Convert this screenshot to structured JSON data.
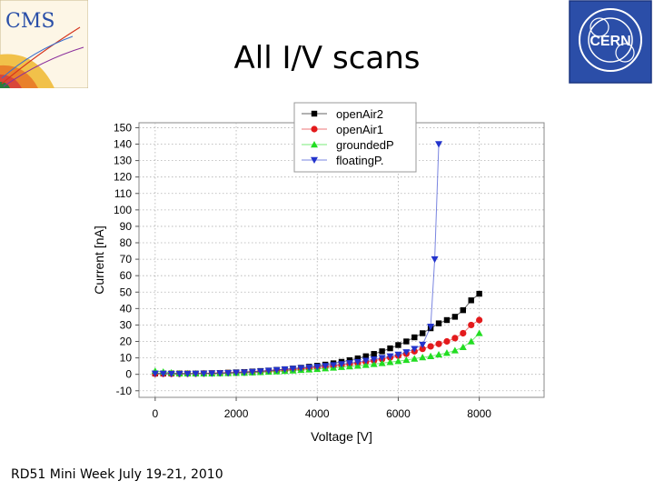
{
  "slide": {
    "title": "All I/V scans",
    "footer": "RD51 Mini Week July 19-21, 2010",
    "logo_left": "CMS",
    "logo_right": "CERN"
  },
  "chart_data": {
    "type": "scatter",
    "title": "",
    "xlabel": "Voltage [V]",
    "ylabel": "Current [nA]",
    "xlim": [
      -400,
      9600
    ],
    "ylim": [
      -14,
      153
    ],
    "xticks": [
      0,
      2000,
      4000,
      6000,
      8000
    ],
    "yticks": [
      -10,
      0,
      10,
      20,
      30,
      40,
      50,
      60,
      70,
      80,
      90,
      100,
      110,
      120,
      130,
      140,
      150
    ],
    "grid": true,
    "legend_position": "top-center",
    "series": [
      {
        "name": "openAir2",
        "color": "#000000",
        "marker": "square",
        "x": [
          0,
          200,
          400,
          600,
          800,
          1000,
          1200,
          1400,
          1600,
          1800,
          2000,
          2200,
          2400,
          2600,
          2800,
          3000,
          3200,
          3400,
          3600,
          3800,
          4000,
          4200,
          4400,
          4600,
          4800,
          5000,
          5200,
          5400,
          5600,
          5800,
          6000,
          6200,
          6400,
          6600,
          6800,
          7000,
          7200,
          7400,
          7600,
          7800,
          8000
        ],
        "y": [
          0.5,
          0.5,
          0.5,
          0.5,
          0.5,
          0.5,
          0.6,
          0.7,
          0.8,
          1.0,
          1.2,
          1.4,
          1.7,
          2.0,
          2.3,
          2.7,
          3.1,
          3.5,
          4.0,
          4.6,
          5.2,
          5.9,
          6.7,
          7.6,
          8.6,
          9.7,
          11.0,
          12.4,
          14.0,
          15.8,
          17.8,
          20.0,
          22.5,
          25.0,
          28.0,
          31.0,
          33.0,
          35.0,
          39.0,
          45.0,
          49.0
        ]
      },
      {
        "name": "openAir1",
        "color": "#e31a1c",
        "marker": "circle",
        "x": [
          0,
          200,
          400,
          600,
          800,
          1000,
          1200,
          1400,
          1600,
          1800,
          2000,
          2200,
          2400,
          2600,
          2800,
          3000,
          3200,
          3400,
          3600,
          3800,
          4000,
          4200,
          4400,
          4600,
          4800,
          5000,
          5200,
          5400,
          5600,
          5800,
          6000,
          6200,
          6400,
          6600,
          6800,
          7000,
          7200,
          7400,
          7600,
          7800,
          8000
        ],
        "y": [
          0.3,
          0.3,
          0.3,
          0.3,
          0.4,
          0.4,
          0.5,
          0.6,
          0.7,
          0.8,
          0.9,
          1.1,
          1.3,
          1.5,
          1.8,
          2.1,
          2.4,
          2.8,
          3.2,
          3.6,
          4.1,
          4.6,
          5.1,
          5.6,
          6.2,
          6.8,
          7.5,
          8.3,
          9.2,
          10.2,
          11.3,
          12.5,
          14.0,
          15.5,
          17.0,
          18.5,
          20.0,
          22.0,
          25.0,
          30.0,
          33.0
        ]
      },
      {
        "name": "groundedP",
        "color": "#22dd22",
        "marker": "triangle-up",
        "x": [
          0,
          200,
          400,
          600,
          800,
          1000,
          1200,
          1400,
          1600,
          1800,
          2000,
          2200,
          2400,
          2600,
          2800,
          3000,
          3200,
          3400,
          3600,
          3800,
          4000,
          4200,
          4400,
          4600,
          4800,
          5000,
          5200,
          5400,
          5600,
          5800,
          6000,
          6200,
          6400,
          6600,
          6800,
          7000,
          7200,
          7400,
          7600,
          7800,
          8000
        ],
        "y": [
          2.0,
          1.5,
          1.0,
          0.5,
          0.5,
          0.5,
          0.5,
          0.5,
          0.6,
          0.7,
          0.8,
          0.9,
          1.1,
          1.3,
          1.5,
          1.7,
          2.0,
          2.3,
          2.6,
          2.9,
          3.2,
          3.6,
          4.0,
          4.4,
          4.8,
          5.2,
          5.7,
          6.2,
          6.8,
          7.4,
          8.0,
          8.7,
          9.5,
          10.3,
          11.0,
          12.0,
          13.0,
          14.5,
          16.5,
          20.0,
          25.0
        ]
      },
      {
        "name": "floatingP.",
        "color": "#2233cc",
        "marker": "triangle-down",
        "x": [
          0,
          200,
          400,
          600,
          800,
          1000,
          1200,
          1400,
          1600,
          1800,
          2000,
          2200,
          2400,
          2600,
          2800,
          3000,
          3200,
          3400,
          3600,
          3800,
          4000,
          4200,
          4400,
          4600,
          4800,
          5000,
          5200,
          5400,
          5600,
          5800,
          6000,
          6200,
          6400,
          6600,
          6800,
          6900,
          7000
        ],
        "y": [
          0.5,
          0.4,
          0.3,
          0.3,
          0.3,
          0.4,
          0.5,
          0.6,
          0.7,
          0.8,
          1.0,
          1.2,
          1.5,
          1.8,
          2.2,
          2.6,
          3.0,
          3.4,
          3.8,
          4.2,
          4.6,
          5.1,
          5.6,
          6.2,
          6.8,
          7.5,
          8.3,
          9.1,
          10.0,
          11.0,
          12.0,
          13.5,
          15.5,
          18.0,
          29.0,
          70.0,
          140.0
        ]
      }
    ]
  }
}
